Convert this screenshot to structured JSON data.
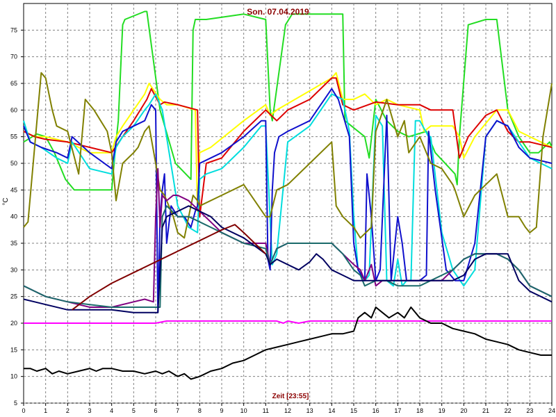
{
  "chart_data": {
    "type": "line",
    "title": "Son. 07.04.2019",
    "xlabel": "Zeit [23:55]",
    "ylabel": "°C",
    "xlim": [
      0,
      24
    ],
    "ylim": [
      5,
      80
    ],
    "xticks": [
      "0",
      "1",
      "2",
      "3",
      "4",
      "5",
      "6",
      "7",
      "8",
      "9",
      "10",
      "11",
      "12",
      "13",
      "14",
      "15",
      "16",
      "17",
      "18",
      "19",
      "20",
      "21",
      "22",
      "23",
      "24"
    ],
    "yticks": [
      "5",
      "10",
      "15",
      "20",
      "25",
      "30",
      "35",
      "40",
      "45",
      "50",
      "55",
      "60",
      "65",
      "70",
      "75"
    ],
    "grid": true,
    "series": [
      {
        "color": "#22dd22",
        "x": [
          0,
          0.6,
          1,
          1.4,
          1.9,
          2.2,
          2.3,
          4,
          4.2,
          4.3,
          4.5,
          4.6,
          5.5,
          5.6,
          6.2,
          6.9,
          7.6,
          7.7,
          7.8,
          8.3,
          10,
          11,
          11.2,
          11.3,
          11.9,
          12.2,
          14.5,
          14.6,
          15.5,
          15.7,
          16,
          16.5,
          17,
          17.5,
          18.3,
          18.7,
          19.6,
          19.7,
          19.8,
          20.2,
          21,
          21.5,
          22,
          22.5,
          23,
          23.4,
          23.9,
          24
        ],
        "y": [
          54,
          55.5,
          55,
          52,
          47,
          45.5,
          45,
          45,
          54,
          58,
          76,
          77,
          78.5,
          78.5,
          60,
          50,
          47,
          75,
          77,
          77,
          78,
          77,
          60,
          58,
          76,
          78,
          78,
          58,
          55,
          51,
          62,
          58,
          56,
          55,
          56,
          52,
          48,
          46,
          55,
          76,
          77,
          77,
          60,
          55,
          52,
          52,
          54,
          53
        ]
      },
      {
        "color": "#ffff00",
        "x": [
          0,
          0.5,
          1,
          1.5,
          2,
          2.5,
          3,
          3.5,
          4,
          4.2,
          4.5,
          5,
          5.5,
          5.7,
          6.2,
          6.5,
          7,
          7.8,
          7.9,
          8,
          8.5,
          10,
          11,
          11.2,
          11.5,
          14,
          14.2,
          14.5,
          15,
          15.5,
          16,
          16.5,
          17,
          18,
          18.2,
          18.5,
          19.5,
          19.8,
          20,
          20.5,
          21.5,
          22,
          22.5,
          23.5,
          24
        ],
        "y": [
          56,
          55,
          55,
          54.5,
          54,
          53,
          52,
          52,
          52,
          55,
          57,
          60,
          63,
          65,
          62,
          61,
          61,
          60,
          41,
          52,
          53,
          58,
          61,
          59,
          60,
          66,
          67,
          62,
          62,
          63,
          61,
          62,
          61,
          60,
          56,
          57,
          57,
          55,
          51,
          55,
          60,
          60,
          56,
          54,
          53
        ]
      },
      {
        "color": "#dd0000",
        "x": [
          0,
          0.5,
          1,
          2,
          3,
          4,
          4.5,
          5,
          5.6,
          5.8,
          6.2,
          6.4,
          7,
          7.9,
          8,
          8.3,
          9,
          10,
          11,
          11.5,
          12,
          13,
          14,
          14.2,
          14.5,
          15,
          16,
          17,
          18,
          18.5,
          19,
          19.5,
          19.8,
          20.2,
          21,
          21.5,
          22,
          22.5,
          23,
          24
        ],
        "y": [
          56,
          55,
          54.5,
          54,
          53,
          52,
          55,
          58,
          62,
          64,
          61,
          61.5,
          61,
          60,
          40,
          50,
          51,
          56,
          60,
          58,
          60,
          62,
          66,
          66,
          61,
          60,
          61.5,
          61,
          61,
          60,
          60,
          60,
          51,
          55,
          59,
          60,
          56,
          54,
          54,
          53
        ]
      },
      {
        "color": "#00dddd",
        "x": [
          0,
          0.3,
          0.8,
          1.5,
          2,
          2.2,
          3,
          4,
          4.2,
          4.5,
          5,
          5.5,
          5.7,
          6,
          6.3,
          7,
          7.5,
          7.9,
          8,
          8.3,
          9,
          10,
          10.8,
          11,
          11.3,
          11.5,
          12,
          13,
          14,
          14.5,
          14.8,
          15,
          15.2,
          15.4,
          15.5,
          15.7,
          16,
          16.3,
          16.5,
          16.8,
          17,
          17.2,
          17.4,
          17.6,
          17.8,
          18,
          18.4,
          18.5,
          19,
          19.5,
          20,
          20.5,
          21,
          21.5,
          22,
          22.5,
          23,
          24
        ],
        "y": [
          58,
          54,
          53,
          51,
          50,
          54,
          49,
          48,
          53,
          55,
          57,
          60,
          61,
          63,
          60,
          42,
          38,
          37,
          47,
          48,
          49,
          53,
          57,
          57,
          31,
          33,
          54,
          57,
          63,
          62,
          56,
          40,
          30,
          29,
          28,
          29,
          59,
          57,
          28,
          27,
          32,
          27,
          28,
          28,
          58,
          58,
          55,
          55,
          37,
          30,
          27,
          30,
          55,
          58,
          57,
          54,
          51,
          49
        ]
      },
      {
        "color": "#1010cc",
        "x": [
          0,
          0.3,
          0.8,
          1.5,
          2,
          2.2,
          3,
          4,
          4.2,
          4.5,
          5,
          5.5,
          5.8,
          6,
          6.1,
          6.2,
          6.3,
          6.4,
          6.5,
          6.7,
          7,
          7.3,
          7.6,
          7.8,
          7.9,
          8,
          8.5,
          9,
          10,
          10.8,
          11,
          11.1,
          11.2,
          11.3,
          11.4,
          11.6,
          12,
          13,
          14,
          14.3,
          14.8,
          15,
          15.2,
          15.5,
          15.6,
          15.8,
          16,
          16.2,
          16.5,
          16.7,
          17,
          17.2,
          17.4,
          17.6,
          17.8,
          18,
          18.3,
          18.4,
          18.7,
          19.2,
          19.6,
          20,
          20.5,
          21,
          21.5,
          22,
          22.5,
          23,
          24
        ],
        "y": [
          57,
          54,
          53,
          52,
          51,
          55,
          52,
          49,
          54,
          56,
          57,
          58,
          61,
          60,
          22,
          40,
          45,
          48,
          35,
          42,
          40,
          40,
          38,
          41,
          42,
          50,
          51,
          52,
          55,
          58,
          58,
          32,
          30,
          45,
          52,
          55,
          56,
          58,
          64,
          62,
          55,
          35,
          30,
          28,
          48,
          40,
          28,
          30,
          59,
          28,
          40,
          35,
          28,
          28,
          28,
          28,
          29,
          56,
          45,
          30,
          28,
          28,
          35,
          55,
          58,
          57,
          53,
          51,
          50
        ]
      },
      {
        "color": "#808000",
        "x": [
          0,
          0.2,
          0.5,
          0.8,
          1,
          1.3,
          1.5,
          2,
          2.5,
          2.8,
          3.2,
          3.5,
          3.8,
          4,
          4.2,
          4.5,
          5,
          5.2,
          5.5,
          5.7,
          6,
          6.2,
          6.4,
          6.8,
          7,
          7.3,
          7.7,
          7.9,
          8,
          9,
          10,
          11,
          11.2,
          11.5,
          12,
          13,
          14,
          14.2,
          14.5,
          15,
          15.3,
          15.8,
          16,
          16.5,
          17,
          17.3,
          17.5,
          18,
          18.5,
          19,
          19.5,
          19.6,
          20,
          20.5,
          21,
          21.5,
          22,
          22.5,
          22.8,
          23,
          23.3,
          23.6,
          24
        ],
        "y": [
          38,
          39,
          53,
          67,
          66,
          60,
          57,
          56,
          48,
          62,
          60,
          58,
          56,
          52,
          43,
          50,
          52,
          53,
          56,
          57,
          50,
          45,
          44,
          40,
          37,
          36,
          44,
          43,
          42,
          44,
          46,
          40,
          40,
          45,
          46,
          50,
          54,
          42,
          40,
          38,
          36,
          38,
          56,
          62,
          55,
          58,
          52,
          55,
          50,
          49,
          46,
          45,
          40,
          44,
          46,
          48,
          40,
          40,
          38,
          37,
          38,
          55,
          65
        ]
      },
      {
        "color": "#800080",
        "x": [
          0,
          0.5,
          1,
          2,
          3,
          4,
          5,
          5.5,
          5.9,
          6,
          6.1,
          6.2,
          6.3,
          6.5,
          6.8,
          7,
          7.5,
          8,
          8.5,
          9,
          9.5,
          10,
          11,
          11.2,
          11.5,
          12,
          13,
          14,
          14.5,
          15,
          15.3,
          15.5,
          15.8,
          16,
          16.3,
          16.5,
          17,
          17.5,
          18,
          18.5,
          19,
          19.5,
          20,
          20.5,
          21,
          21.5,
          22,
          22.5,
          23,
          24
        ],
        "y": [
          27,
          26,
          25,
          24,
          23,
          23,
          24,
          24.5,
          24,
          40,
          49,
          38,
          44,
          43,
          44,
          44,
          43,
          41,
          39,
          37,
          36,
          35,
          35,
          31,
          34,
          35,
          35,
          35,
          33,
          31,
          30,
          28,
          31,
          27,
          28,
          28,
          28,
          28,
          28,
          28,
          28,
          30,
          32,
          33,
          33,
          33,
          32,
          30,
          27,
          25
        ]
      },
      {
        "color": "#1a6a6a",
        "x": [
          0,
          0.5,
          1,
          2,
          3,
          4,
          5,
          5.5,
          5.9,
          6.2,
          6.3,
          6.5,
          7,
          7.5,
          8,
          8.5,
          9,
          10,
          11,
          11.2,
          11.5,
          12,
          13,
          14,
          14.5,
          15,
          15.3,
          15.5,
          16,
          16.5,
          17,
          17.5,
          18,
          18.5,
          19,
          19.5,
          20,
          20.5,
          21,
          21.5,
          22,
          22.5,
          23,
          24
        ],
        "y": [
          27,
          26,
          25,
          24,
          23.5,
          23,
          23,
          23,
          23,
          23,
          40,
          42,
          40,
          40,
          39,
          38,
          37,
          35,
          34,
          31,
          34,
          35,
          35,
          35,
          33,
          30,
          29,
          27,
          28,
          28,
          27,
          27,
          27,
          28,
          29,
          30,
          32,
          33,
          33,
          33,
          32,
          30,
          27,
          25
        ]
      },
      {
        "color": "#000060",
        "x": [
          0,
          0.5,
          1,
          2,
          3,
          4,
          5,
          6,
          6.1,
          6.3,
          6.5,
          7,
          7.5,
          8,
          8.5,
          9,
          10,
          11,
          11.2,
          11.5,
          12,
          12.5,
          13,
          13.3,
          13.6,
          14,
          14.5,
          15,
          15.5,
          16,
          16.5,
          17,
          18,
          18.5,
          19,
          19.5,
          20,
          20.5,
          21,
          21.5,
          22,
          22.5,
          23,
          24
        ],
        "y": [
          24.5,
          24,
          23.5,
          22.5,
          22.5,
          22.5,
          22,
          22,
          22,
          38,
          40,
          41,
          42,
          41,
          40,
          38,
          36,
          33,
          31,
          32,
          31,
          30,
          31.5,
          33,
          32,
          30,
          29,
          28,
          28,
          28,
          28,
          28,
          28,
          28,
          28,
          28,
          29,
          32,
          33,
          33,
          33,
          28,
          26,
          24
        ]
      },
      {
        "color": "#800000",
        "x": [
          2.2,
          3,
          4,
          5,
          6,
          7,
          8,
          8.5,
          9,
          9.3,
          9.6,
          10,
          10.5,
          11
        ],
        "y": [
          22.5,
          25,
          27.5,
          29.5,
          31.5,
          33.5,
          35.5,
          36.5,
          37.5,
          38,
          38.5,
          37,
          35,
          33
        ]
      },
      {
        "color": "#ff00ff",
        "x": [
          0,
          2,
          4,
          6,
          6.5,
          7,
          10,
          11.5,
          11.8,
          12,
          12.5,
          13,
          14,
          24
        ],
        "y": [
          20,
          20,
          20,
          20,
          20.4,
          20.4,
          20.4,
          20.4,
          20,
          20.4,
          20,
          20.4,
          20.4,
          20.4
        ]
      },
      {
        "color": "#000000",
        "x": [
          0,
          0.3,
          0.6,
          1,
          1.3,
          1.6,
          2,
          2.5,
          3,
          3.3,
          3.6,
          4,
          4.5,
          5,
          5.5,
          6,
          6.3,
          6.6,
          7,
          7.3,
          7.6,
          8,
          8.5,
          9,
          9.5,
          10,
          10.5,
          11,
          11.5,
          12,
          12.5,
          13,
          13.5,
          14,
          14.5,
          15,
          15.2,
          15.5,
          15.8,
          16,
          16.3,
          16.6,
          17,
          17.3,
          17.6,
          18,
          18.5,
          19,
          19.5,
          20,
          20.5,
          21,
          21.5,
          22,
          22.5,
          23,
          23.5,
          24
        ],
        "y": [
          11.5,
          11.5,
          11,
          11.5,
          10.5,
          11,
          10.5,
          11,
          11.5,
          11,
          11.5,
          11.5,
          11,
          11,
          10.5,
          11,
          10.5,
          11,
          10,
          10.5,
          9.5,
          10,
          11,
          11.5,
          12.5,
          13,
          14,
          15,
          15.5,
          16,
          16.5,
          17,
          17.5,
          18,
          18,
          18.5,
          21,
          22,
          21,
          23,
          22,
          21,
          22,
          21,
          23,
          21,
          20,
          20,
          19,
          18.5,
          18,
          17,
          16.5,
          16,
          15,
          14.5,
          14,
          14
        ]
      }
    ]
  }
}
